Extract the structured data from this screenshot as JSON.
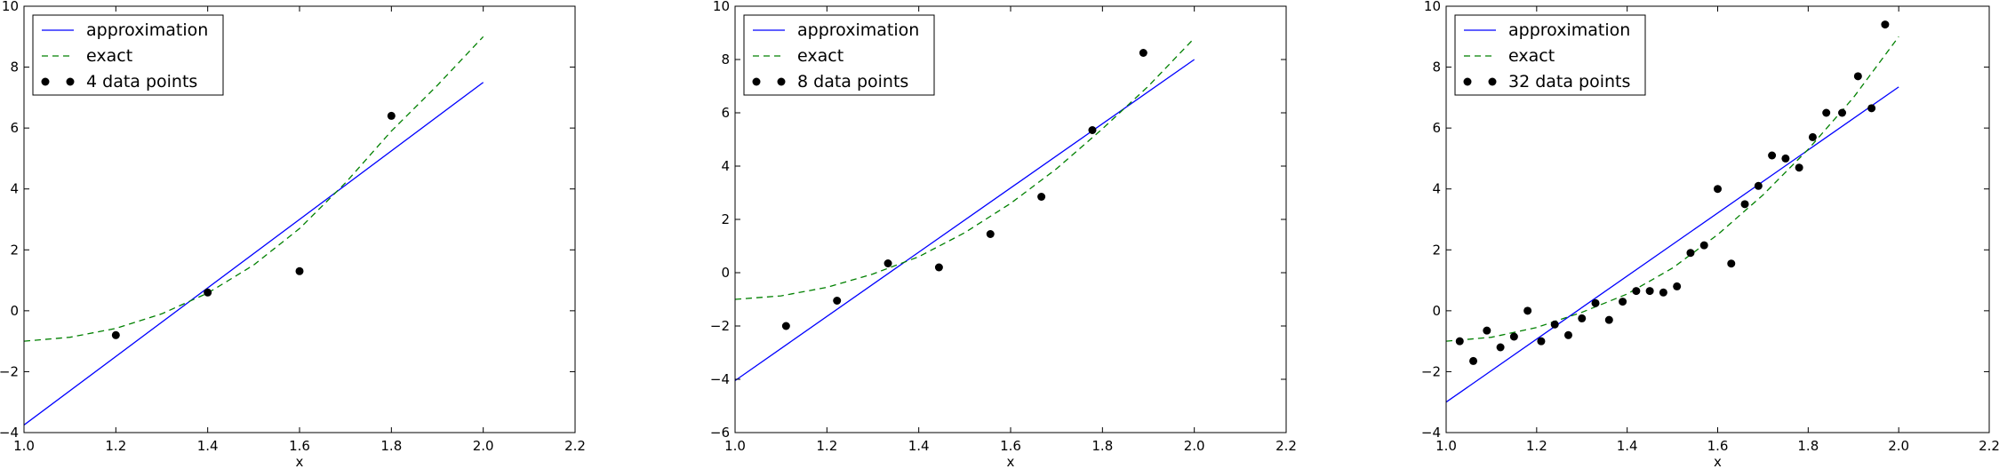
{
  "chart_data": [
    {
      "type": "line",
      "xlabel": "x",
      "ylabel": "",
      "xlim": [
        1.0,
        2.2
      ],
      "ylim": [
        -4,
        10
      ],
      "xticks": [
        1.0,
        1.2,
        1.4,
        1.6,
        1.8,
        2.0,
        2.2
      ],
      "yticks": [
        -4,
        -2,
        0,
        2,
        4,
        6,
        8,
        10
      ],
      "grid": false,
      "legend_position": "top-left",
      "series": [
        {
          "name": "approximation",
          "kind": "line",
          "style": "solid",
          "color": "#0000ff",
          "x": [
            1.0,
            2.0
          ],
          "y": [
            -3.75,
            7.5
          ]
        },
        {
          "name": "exact",
          "kind": "line",
          "style": "dashed",
          "color": "#008000",
          "function": "x^3 + ... (exact curve)",
          "x": [
            1.0,
            1.1,
            1.2,
            1.3,
            1.4,
            1.5,
            1.6,
            1.7,
            1.8,
            1.9,
            2.0
          ],
          "y": [
            -1.0,
            -0.87,
            -0.58,
            -0.1,
            0.58,
            1.5,
            2.7,
            4.2,
            5.9,
            7.4,
            9.0
          ]
        },
        {
          "name": "4 data points",
          "kind": "scatter",
          "color": "#000000",
          "x": [
            1.2,
            1.4,
            1.6,
            1.8
          ],
          "y": [
            -0.8,
            0.6,
            1.3,
            6.4
          ]
        }
      ]
    },
    {
      "type": "line",
      "xlabel": "x",
      "ylabel": "",
      "xlim": [
        1.0,
        2.2
      ],
      "ylim": [
        -6,
        10
      ],
      "xticks": [
        1.0,
        1.2,
        1.4,
        1.6,
        1.8,
        2.0,
        2.2
      ],
      "yticks": [
        -6,
        -4,
        -2,
        0,
        2,
        4,
        6,
        8,
        10
      ],
      "grid": false,
      "legend_position": "top-left",
      "series": [
        {
          "name": "approximation",
          "kind": "line",
          "style": "solid",
          "color": "#0000ff",
          "x": [
            1.0,
            2.0
          ],
          "y": [
            -4.05,
            8.0
          ]
        },
        {
          "name": "exact",
          "kind": "line",
          "style": "dashed",
          "color": "#008000",
          "x": [
            1.0,
            1.1,
            1.2,
            1.3,
            1.4,
            1.5,
            1.6,
            1.7,
            1.8,
            1.9,
            2.0
          ],
          "y": [
            -1.0,
            -0.87,
            -0.55,
            -0.05,
            0.6,
            1.5,
            2.6,
            3.9,
            5.4,
            7.0,
            8.8
          ]
        },
        {
          "name": "8 data points",
          "kind": "scatter",
          "color": "#000000",
          "x": [
            1.111,
            1.222,
            1.333,
            1.444,
            1.556,
            1.667,
            1.778,
            1.889
          ],
          "y": [
            -2.0,
            -1.05,
            0.35,
            0.2,
            1.45,
            2.85,
            5.35,
            8.25
          ]
        }
      ]
    },
    {
      "type": "line",
      "xlabel": "x",
      "ylabel": "",
      "xlim": [
        1.0,
        2.2
      ],
      "ylim": [
        -4,
        10
      ],
      "xticks": [
        1.0,
        1.2,
        1.4,
        1.6,
        1.8,
        2.0,
        2.2
      ],
      "yticks": [
        -4,
        -2,
        0,
        2,
        4,
        6,
        8,
        10
      ],
      "grid": false,
      "legend_position": "top-left",
      "series": [
        {
          "name": "approximation",
          "kind": "line",
          "style": "solid",
          "color": "#0000ff",
          "x": [
            1.0,
            2.0
          ],
          "y": [
            -3.0,
            7.35
          ]
        },
        {
          "name": "exact",
          "kind": "line",
          "style": "dashed",
          "color": "#008000",
          "x": [
            1.0,
            1.1,
            1.2,
            1.3,
            1.4,
            1.5,
            1.6,
            1.7,
            1.8,
            1.9,
            2.0
          ],
          "y": [
            -1.0,
            -0.87,
            -0.55,
            -0.05,
            0.55,
            1.4,
            2.5,
            3.8,
            5.3,
            7.0,
            9.0
          ]
        },
        {
          "name": "32 data points",
          "kind": "scatter",
          "color": "#000000",
          "x": [
            1.03,
            1.06,
            1.09,
            1.12,
            1.15,
            1.18,
            1.21,
            1.24,
            1.27,
            1.3,
            1.33,
            1.36,
            1.39,
            1.42,
            1.45,
            1.48,
            1.51,
            1.54,
            1.57,
            1.6,
            1.63,
            1.66,
            1.69,
            1.72,
            1.75,
            1.78,
            1.81,
            1.84,
            1.875,
            1.91,
            1.94,
            1.97
          ],
          "y": [
            -1.0,
            -1.65,
            -0.65,
            -1.2,
            -0.85,
            0.0,
            -1.0,
            -0.45,
            -0.8,
            -0.25,
            0.25,
            -0.3,
            0.3,
            0.65,
            0.65,
            0.6,
            0.8,
            1.9,
            2.15,
            4.0,
            1.55,
            3.5,
            4.1,
            5.1,
            5.0,
            4.7,
            5.7,
            6.5,
            6.5,
            7.7,
            6.65,
            9.4
          ]
        }
      ]
    }
  ]
}
